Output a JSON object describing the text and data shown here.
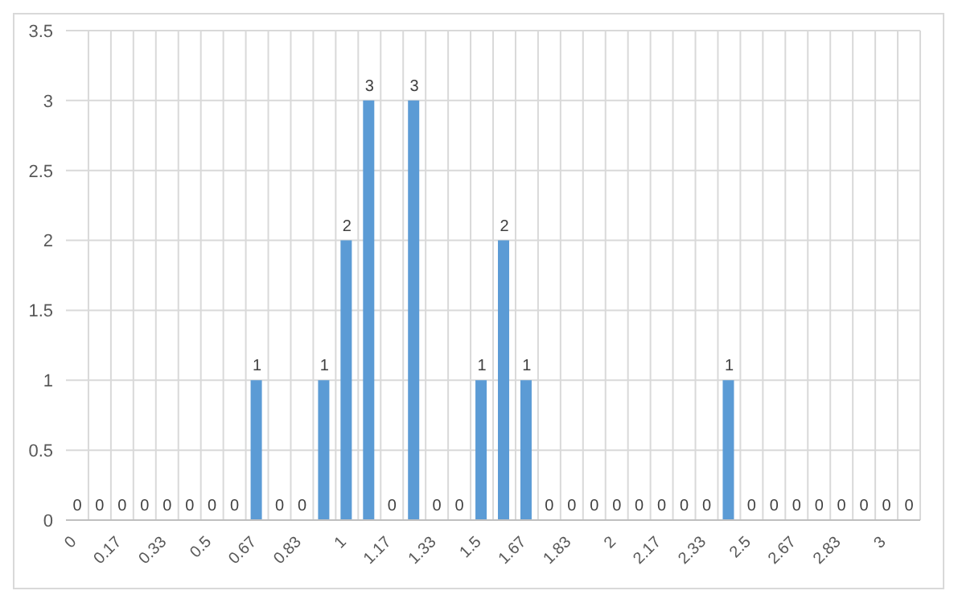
{
  "chart_data": {
    "type": "bar",
    "categories": [
      "0",
      null,
      "0.17",
      null,
      "0.33",
      null,
      "0.5",
      null,
      "0.67",
      null,
      "0.83",
      null,
      "1",
      null,
      "1.17",
      null,
      "1.33",
      null,
      "1.5",
      null,
      "1.67",
      null,
      "1.83",
      null,
      "2",
      null,
      "2.17",
      null,
      "2.33",
      null,
      "2.5",
      null,
      "2.67",
      null,
      "2.83",
      null,
      "3",
      null
    ],
    "values": [
      0,
      0,
      0,
      0,
      0,
      0,
      0,
      0,
      1,
      0,
      0,
      1,
      2,
      3,
      0,
      3,
      0,
      0,
      1,
      2,
      1,
      0,
      0,
      0,
      0,
      0,
      0,
      0,
      0,
      1,
      0,
      0,
      0,
      0,
      0,
      0,
      0,
      0
    ],
    "color": "#5b9bd5",
    "ylim": [
      0,
      3.5
    ],
    "yticks": [
      0,
      0.5,
      1,
      1.5,
      2,
      2.5,
      3,
      3.5
    ],
    "grid": true,
    "data_labels": true
  }
}
